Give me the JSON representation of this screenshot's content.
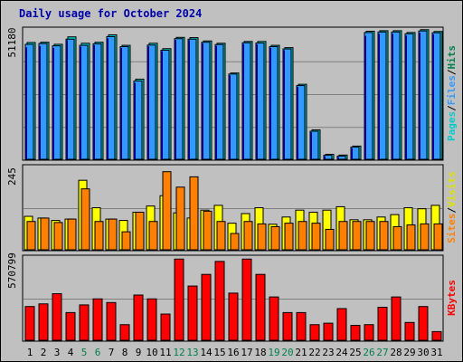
{
  "title": "Daily usage for October 2024",
  "chart_data": [
    {
      "type": "bar",
      "panel": "top",
      "ylabel": [
        "Pages",
        "/",
        "Files",
        "/",
        "Hits"
      ],
      "max_label": "51180",
      "ylim": [
        0,
        51180
      ],
      "categories": [
        "1",
        "2",
        "3",
        "4",
        "5",
        "6",
        "7",
        "8",
        "9",
        "10",
        "11",
        "12",
        "13",
        "14",
        "15",
        "16",
        "17",
        "18",
        "19",
        "20",
        "21",
        "22",
        "23",
        "24",
        "25",
        "26",
        "27",
        "28",
        "29",
        "30",
        "31"
      ],
      "series": [
        {
          "name": "Hits",
          "color": "#00cccc",
          "values": [
            45900,
            46000,
            45200,
            48100,
            45600,
            46000,
            48900,
            44800,
            31600,
            45600,
            43500,
            47900,
            47800,
            46500,
            45600,
            34000,
            46300,
            46300,
            44800,
            43900,
            29600,
            11800,
            2300,
            2000,
            5500,
            50300,
            50500,
            50500,
            49800,
            50900,
            50200
          ]
        },
        {
          "name": "Files",
          "color": "#3399ff",
          "values": [
            45200,
            45500,
            44600,
            47200,
            44800,
            45400,
            48200,
            44300,
            30900,
            44900,
            42900,
            47400,
            47200,
            46000,
            45100,
            33600,
            45800,
            45700,
            44300,
            43400,
            29100,
            11300,
            1900,
            1600,
            5100,
            49800,
            50000,
            50000,
            49300,
            50400,
            49700
          ]
        },
        {
          "name": "Pages",
          "color": "#00008b",
          "values": [
            44000,
            44500,
            43800,
            46800,
            44300,
            44900,
            47500,
            43800,
            30200,
            44400,
            42500,
            46900,
            46800,
            45600,
            44600,
            33100,
            45300,
            45200,
            43800,
            42900,
            28600,
            10900,
            1500,
            1200,
            4700,
            48500,
            49300,
            49300,
            48600,
            49700,
            49100
          ]
        }
      ]
    },
    {
      "type": "bar",
      "panel": "middle",
      "ylabel": [
        "Sites",
        "/",
        "Visits"
      ],
      "max_label": "245",
      "ylim": [
        0,
        245
      ],
      "categories": [
        "1",
        "2",
        "3",
        "4",
        "5",
        "6",
        "7",
        "8",
        "9",
        "10",
        "11",
        "12",
        "13",
        "14",
        "15",
        "16",
        "17",
        "18",
        "19",
        "20",
        "21",
        "22",
        "23",
        "24",
        "25",
        "26",
        "27",
        "28",
        "29",
        "30",
        "31"
      ],
      "series": [
        {
          "name": "Visits",
          "color": "#ffff00",
          "values": [
            100,
            95,
            88,
            92,
            205,
            125,
            92,
            88,
            112,
            130,
            160,
            110,
            95,
            118,
            132,
            80,
            108,
            125,
            77,
            98,
            118,
            112,
            118,
            128,
            90,
            90,
            98,
            105,
            125,
            122,
            132
          ]
        },
        {
          "name": "Sites",
          "color": "#ff8000",
          "values": [
            85,
            95,
            82,
            92,
            180,
            85,
            92,
            55,
            112,
            85,
            230,
            185,
            215,
            115,
            85,
            50,
            85,
            78,
            70,
            80,
            85,
            80,
            62,
            85,
            85,
            85,
            85,
            70,
            75,
            78,
            78
          ]
        }
      ]
    },
    {
      "type": "bar",
      "panel": "bottom",
      "ylabel": [
        "KBytes"
      ],
      "max_label": "570799",
      "ylim": [
        0,
        570799
      ],
      "categories": [
        "1",
        "2",
        "3",
        "4",
        "5",
        "6",
        "7",
        "8",
        "9",
        "10",
        "11",
        "12",
        "13",
        "14",
        "15",
        "16",
        "17",
        "18",
        "19",
        "20",
        "21",
        "22",
        "23",
        "24",
        "25",
        "26",
        "27",
        "28",
        "29",
        "30",
        "31"
      ],
      "series": [
        {
          "name": "KBytes",
          "color": "#ff0000",
          "values": [
            235000,
            253000,
            322000,
            194000,
            246000,
            287000,
            262000,
            112000,
            313000,
            287000,
            184000,
            557000,
            374000,
            453000,
            541000,
            326000,
            557000,
            453000,
            300000,
            194000,
            194000,
            112000,
            122000,
            221000,
            107000,
            112000,
            230000,
            300000,
            127000,
            235000,
            65000
          ]
        }
      ]
    }
  ],
  "colors": {
    "background": "#c0c0c0",
    "plot_background": "#c0c0c0",
    "grid": "#808080",
    "title": "#0000aa",
    "weekend_label": "#00804c",
    "weekday_label": "#000000"
  },
  "x_labels": {
    "weekend_days": [
      "5",
      "6",
      "12",
      "13",
      "19",
      "20",
      "26",
      "27"
    ]
  }
}
